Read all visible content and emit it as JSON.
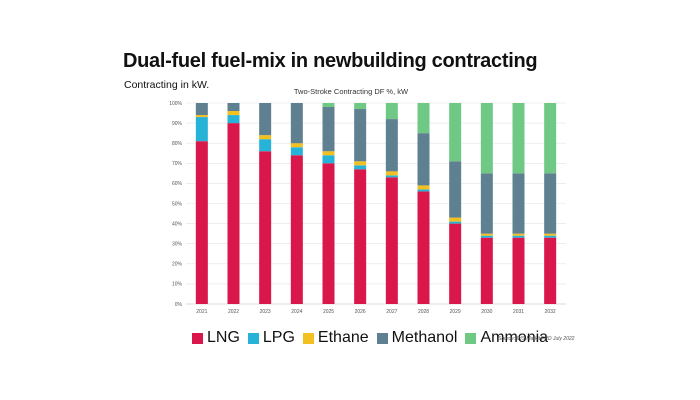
{
  "header": {
    "title": "Dual-fuel fuel-mix in newbuilding contracting",
    "subtitle": "Contracting in kW."
  },
  "source_note": "Source: IHS Markit/FRD July 2022",
  "chart_data": {
    "type": "bar",
    "stacked": true,
    "title": "Two-Stroke Contracting DF %, kW",
    "xlabel": "",
    "ylabel": "",
    "ylim": [
      0,
      100
    ],
    "grid": true,
    "legend_position": "bottom",
    "categories": [
      "2021",
      "2022",
      "2023",
      "2024",
      "2025",
      "2026",
      "2027",
      "2028",
      "2029",
      "2030",
      "2031",
      "2032"
    ],
    "yticks": [
      "0%",
      "10%",
      "20%",
      "30%",
      "40%",
      "50%",
      "60%",
      "70%",
      "80%",
      "90%",
      "100%"
    ],
    "series": [
      {
        "name": "LNG",
        "color": "#d9174b",
        "values": [
          81,
          90,
          76,
          74,
          70,
          67,
          63,
          56,
          40,
          33,
          33,
          33
        ]
      },
      {
        "name": "LPG",
        "color": "#27b3d8",
        "values": [
          12,
          4,
          6,
          4,
          4,
          2,
          1,
          1,
          1,
          1,
          1,
          1
        ]
      },
      {
        "name": "Ethane",
        "color": "#f2c021",
        "values": [
          1,
          2,
          2,
          2,
          2,
          2,
          2,
          2,
          2,
          1,
          1,
          1
        ]
      },
      {
        "name": "Methanol",
        "color": "#5f8091",
        "values": [
          6,
          4,
          16,
          20,
          22,
          26,
          26,
          26,
          28,
          30,
          30,
          30
        ]
      },
      {
        "name": "Ammonia",
        "color": "#6fc985",
        "values": [
          0,
          0,
          0,
          0,
          2,
          3,
          8,
          15,
          29,
          35,
          35,
          35
        ]
      }
    ]
  }
}
